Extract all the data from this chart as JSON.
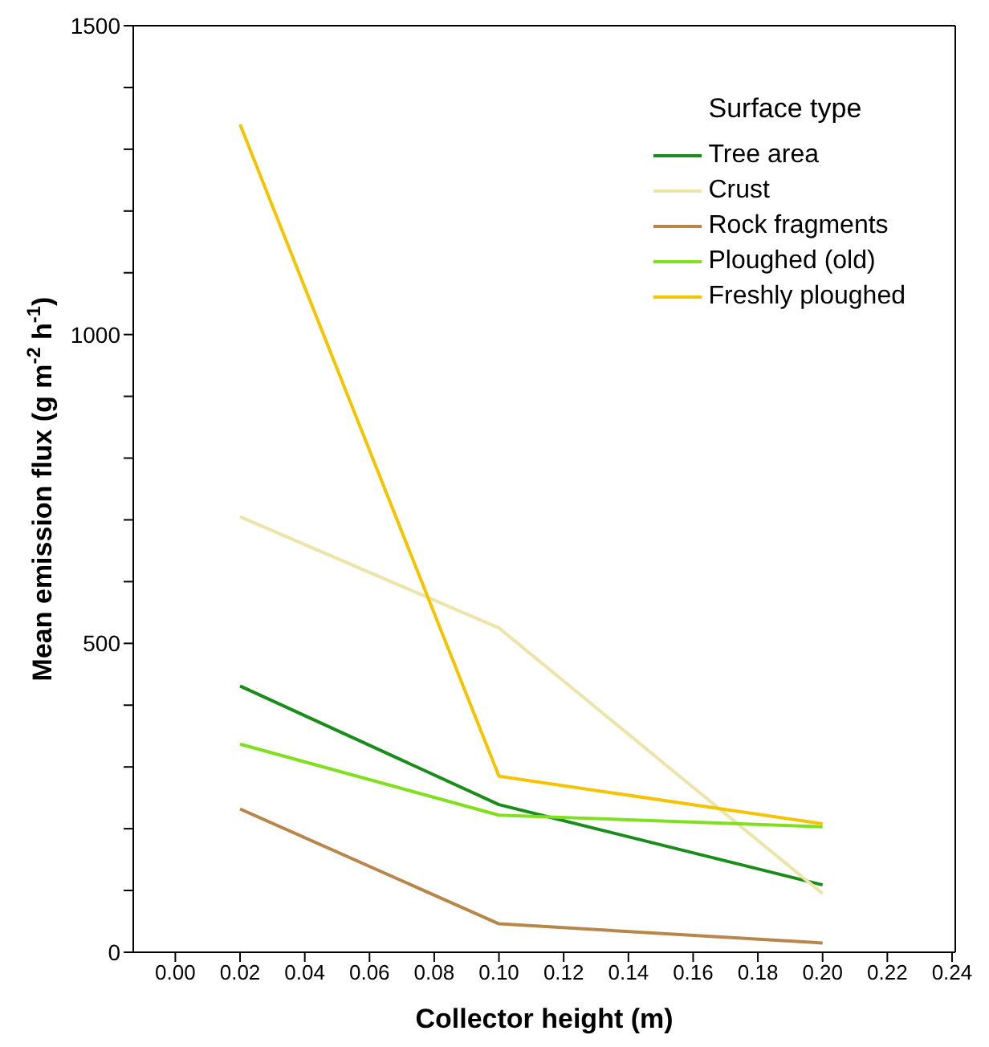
{
  "chart_data": {
    "type": "line",
    "xlabel": "Collector height (m)",
    "ylabel": "Mean emission flux (g m$^{-2}$ h$^{-1}$)",
    "legend_title": "Surface type",
    "legend": "top right",
    "grid": false,
    "marker": "none",
    "line_style": "solid",
    "xlim": [
      -0.013,
      0.241
    ],
    "ylim": [
      0,
      1500
    ],
    "xticks": [
      {
        "value": 0,
        "label": "0.00"
      },
      {
        "value": 0.02,
        "label": "0.02"
      },
      {
        "value": 0.04,
        "label": "0.04"
      },
      {
        "value": 0.06,
        "label": "0.06"
      },
      {
        "value": 0.08,
        "label": "0.08"
      },
      {
        "value": 0.1,
        "label": "0.10"
      },
      {
        "value": 0.12,
        "label": "0.12"
      },
      {
        "value": 0.14,
        "label": "0.14"
      },
      {
        "value": 0.16,
        "label": "0.16"
      },
      {
        "value": 0.18,
        "label": "0.18"
      },
      {
        "value": 0.2,
        "label": "0.20"
      },
      {
        "value": 0.22,
        "label": "0.22"
      },
      {
        "value": 0.24,
        "label": "0.24"
      }
    ],
    "yticks": [
      0,
      {
        "value": 100,
        "label": null
      },
      {
        "value": 200,
        "label": null
      },
      {
        "value": 300,
        "label": null
      },
      {
        "value": 400,
        "label": null
      },
      500,
      {
        "value": 600,
        "label": null
      },
      {
        "value": 700,
        "label": null
      },
      {
        "value": 800,
        "label": null
      },
      {
        "value": 900,
        "label": null
      },
      1000,
      {
        "value": 1100,
        "label": null
      },
      {
        "value": 1200,
        "label": null
      },
      {
        "value": 1300,
        "label": null
      },
      {
        "value": 1400,
        "label": null
      },
      1500
    ],
    "x": [
      0.02,
      0.1,
      0.2
    ],
    "series": [
      {
        "name": "Tree area",
        "color": "#1a8c1a",
        "values": [
          431,
          239,
          109
        ]
      },
      {
        "name": "Crust",
        "color": "#ece4a8",
        "values": [
          705,
          525,
          95
        ]
      },
      {
        "name": "Rock fragments",
        "color": "#b8864a",
        "values": [
          232,
          46,
          15
        ]
      },
      {
        "name": "Ploughed (old)",
        "color": "#7fe01e",
        "values": [
          337,
          222,
          203
        ]
      },
      {
        "name": "Freshly ploughed",
        "color": "#f5c400",
        "values": [
          1340,
          285,
          208
        ]
      }
    ]
  }
}
